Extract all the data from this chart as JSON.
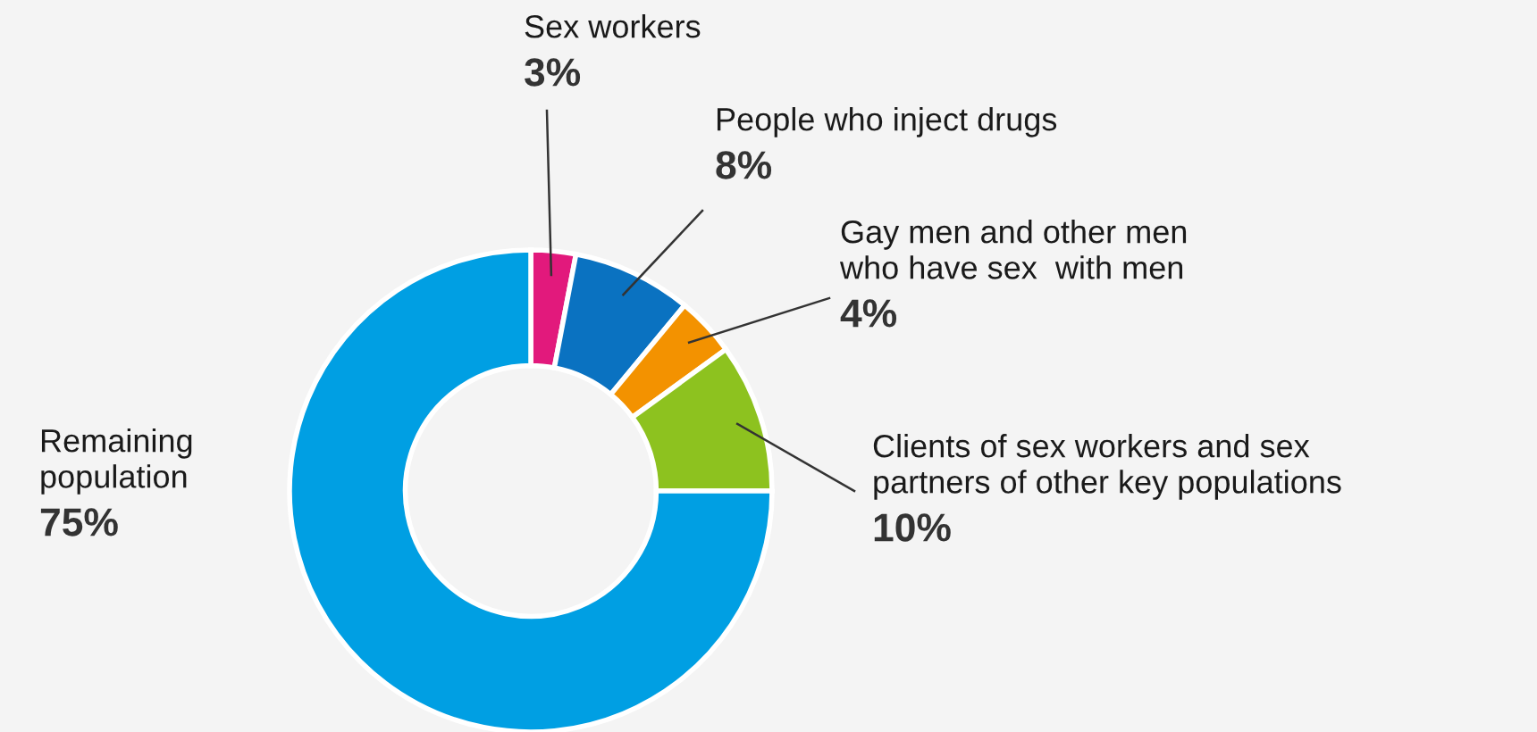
{
  "chart_data": {
    "type": "donut",
    "categories": [
      "Sex workers",
      "People who inject drugs",
      "Gay men and other men\nwho have sex  with men",
      "Clients of sex workers and sex\npartners of other key populations",
      "Remaining\npopulation"
    ],
    "values": [
      3,
      8,
      4,
      10,
      75
    ],
    "value_labels": [
      "3%",
      "8%",
      "4%",
      "10%",
      "75%"
    ],
    "colors": [
      "#e2197c",
      "#0a72c1",
      "#f39200",
      "#8dc21f",
      "#009fe3"
    ]
  }
}
